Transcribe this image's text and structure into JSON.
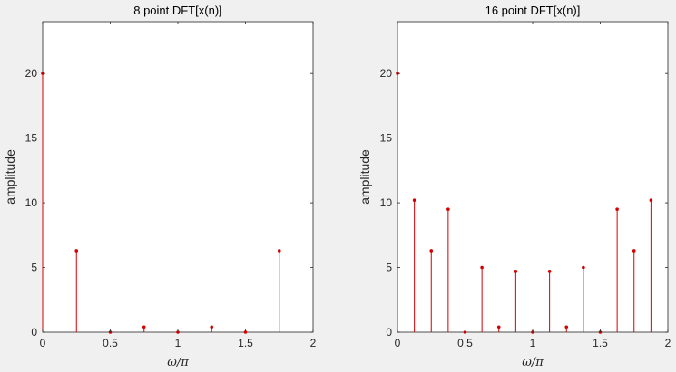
{
  "figure": {
    "background": "#f0f0f0",
    "axes_background": "#ffffff",
    "axes_color": "#262626",
    "stem_color": "#d40000"
  },
  "chart_data": [
    {
      "type": "stem",
      "title": "8 point DFT[x(n)]",
      "xlabel": "ω/π",
      "ylabel": "amplitude",
      "xlim": [
        0,
        2
      ],
      "ylim": [
        0,
        24
      ],
      "xticks": [
        0,
        0.5,
        1,
        1.5,
        2
      ],
      "xtick_labels": [
        "0",
        "0.5",
        "1",
        "1.5",
        "2"
      ],
      "yticks": [
        0,
        5,
        10,
        15,
        20
      ],
      "ytick_labels": [
        "0",
        "5",
        "10",
        "15",
        "20"
      ],
      "grid": false,
      "x": [
        0,
        0.25,
        0.5,
        0.75,
        1,
        1.25,
        1.5,
        1.75
      ],
      "values": [
        20,
        6.3,
        0,
        0.4,
        0,
        0.4,
        0,
        6.3
      ]
    },
    {
      "type": "stem",
      "title": "16 point DFT[x(n)]",
      "xlabel": "ω/π",
      "ylabel": "amplitude",
      "xlim": [
        0,
        2
      ],
      "ylim": [
        0,
        24
      ],
      "xticks": [
        0,
        0.5,
        1,
        1.5,
        2
      ],
      "xtick_labels": [
        "0",
        "0.5",
        "1",
        "1.5",
        "2"
      ],
      "yticks": [
        0,
        5,
        10,
        15,
        20
      ],
      "ytick_labels": [
        "0",
        "5",
        "10",
        "15",
        "20"
      ],
      "grid": false,
      "x": [
        0,
        0.125,
        0.25,
        0.375,
        0.5,
        0.625,
        0.75,
        0.875,
        1,
        1.125,
        1.25,
        1.375,
        1.5,
        1.625,
        1.75,
        1.875
      ],
      "values": [
        20,
        10.2,
        6.3,
        9.5,
        0,
        5.0,
        0.4,
        4.7,
        0,
        4.7,
        0.4,
        5.0,
        0,
        9.5,
        6.3,
        10.2
      ]
    }
  ]
}
